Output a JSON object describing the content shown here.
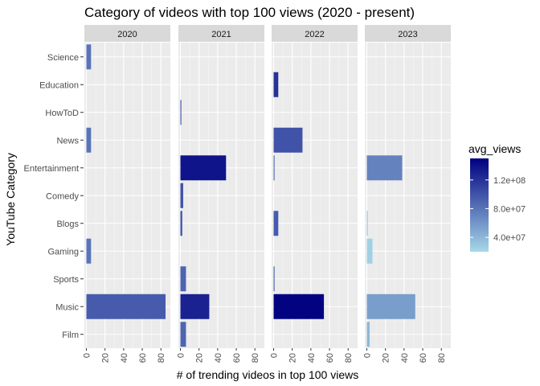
{
  "chart_data": {
    "type": "bar",
    "orientation": "horizontal",
    "title": "Category of videos with top 100 views (2020 - present)",
    "xlabel": "# of trending videos in top 100 views",
    "ylabel": "YouTube Category",
    "categories": [
      "Science",
      "Education",
      "HowToD",
      "News",
      "Entertainment",
      "Comedy",
      "Blogs",
      "Gaming",
      "Sports",
      "Music",
      "Film"
    ],
    "xlim": [
      0,
      88
    ],
    "x_ticks": [
      0,
      20,
      40,
      60,
      80
    ],
    "x_tick_labels": [
      "0",
      "20",
      "40",
      "60",
      "80"
    ],
    "facets": [
      {
        "label": "2020",
        "bars": [
          {
            "category": "Science",
            "value": 5,
            "avg_views": 80000000
          },
          {
            "category": "News",
            "value": 5,
            "avg_views": 80000000
          },
          {
            "category": "Gaming",
            "value": 5,
            "avg_views": 80000000
          },
          {
            "category": "Music",
            "value": 85,
            "avg_views": 95000000
          }
        ]
      },
      {
        "label": "2021",
        "bars": [
          {
            "category": "HowToD",
            "value": 1,
            "avg_views": 100000000
          },
          {
            "category": "Entertainment",
            "value": 49,
            "avg_views": 138000000
          },
          {
            "category": "Comedy",
            "value": 3,
            "avg_views": 100000000
          },
          {
            "category": "Blogs",
            "value": 2,
            "avg_views": 100000000
          },
          {
            "category": "Sports",
            "value": 6,
            "avg_views": 90000000
          },
          {
            "category": "Music",
            "value": 31,
            "avg_views": 130000000
          },
          {
            "category": "Film",
            "value": 6,
            "avg_views": 90000000
          }
        ]
      },
      {
        "label": "2022",
        "bars": [
          {
            "category": "Education",
            "value": 5,
            "avg_views": 120000000
          },
          {
            "category": "News",
            "value": 31,
            "avg_views": 100000000
          },
          {
            "category": "Entertainment",
            "value": 1,
            "avg_views": 90000000
          },
          {
            "category": "Blogs",
            "value": 5,
            "avg_views": 95000000
          },
          {
            "category": "Sports",
            "value": 1,
            "avg_views": 95000000
          },
          {
            "category": "Music",
            "value": 54,
            "avg_views": 148000000
          }
        ]
      },
      {
        "label": "2023",
        "bars": [
          {
            "category": "Entertainment",
            "value": 38,
            "avg_views": 72000000
          },
          {
            "category": "Blogs",
            "value": 1,
            "avg_views": 30000000
          },
          {
            "category": "Gaming",
            "value": 6,
            "avg_views": 25000000
          },
          {
            "category": "Music",
            "value": 52,
            "avg_views": 55000000
          },
          {
            "category": "Film",
            "value": 3,
            "avg_views": 40000000
          }
        ]
      }
    ],
    "color_scale": {
      "name": "avg_views",
      "low_color": "#a6d8e8",
      "high_color": "#000080",
      "domain": [
        20000000,
        150000000
      ],
      "breaks": [
        40000000,
        80000000,
        120000000
      ],
      "break_labels": [
        "4.0e+07",
        "8.0e+07",
        "1.2e+08"
      ]
    },
    "grid": true,
    "legend_position": "right"
  }
}
